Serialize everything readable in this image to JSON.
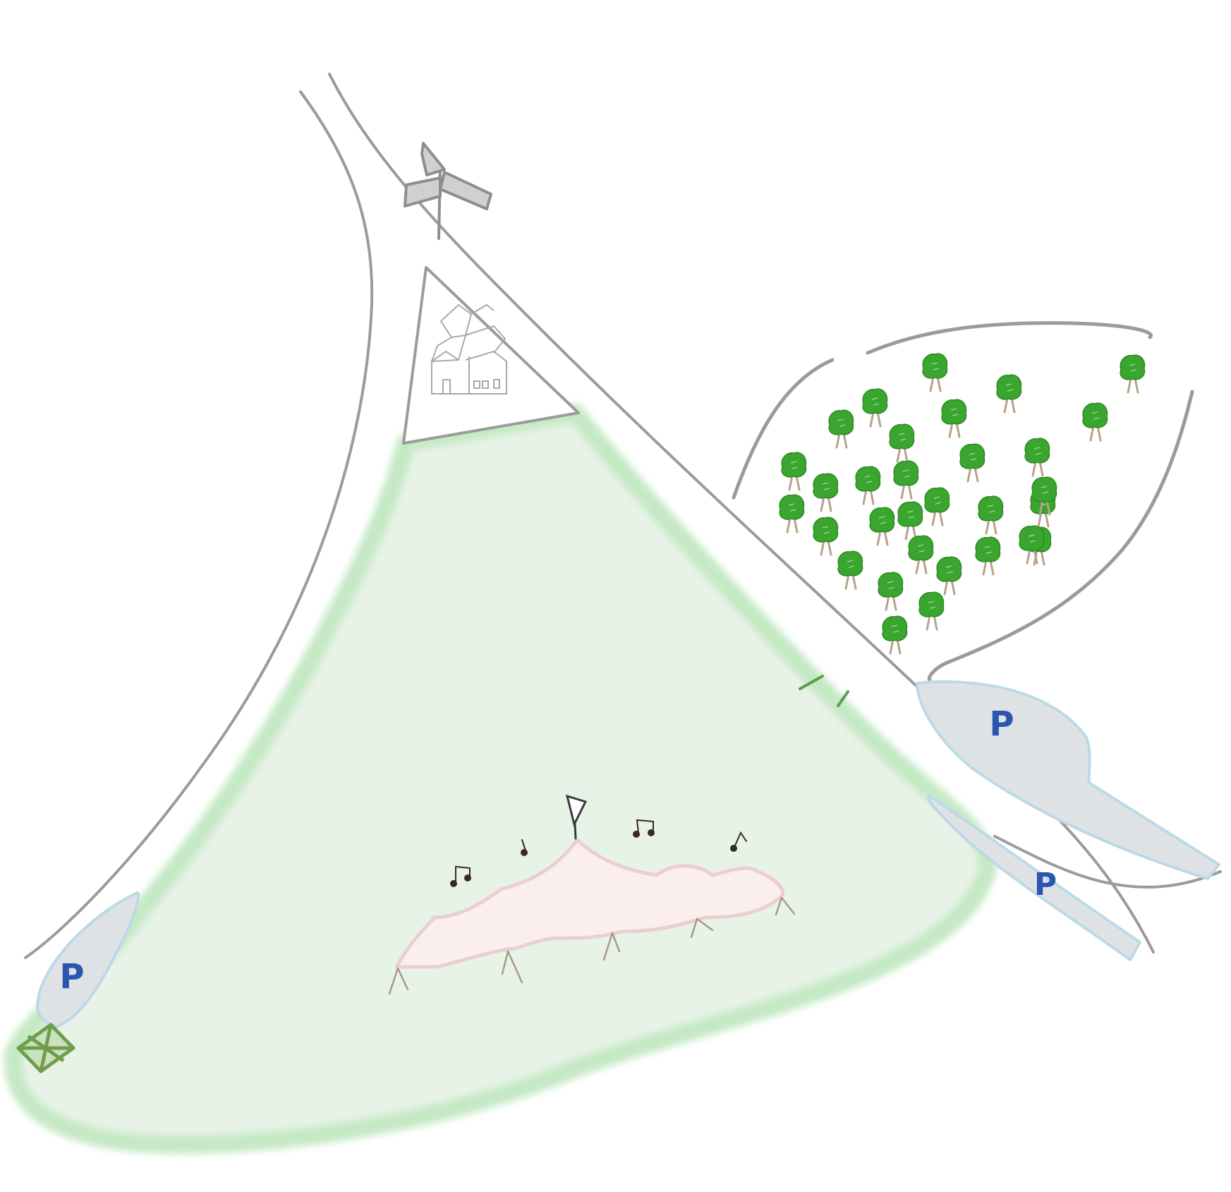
{
  "colors": {
    "road": "#9b9b9b",
    "field_fill": "#e8f3e8",
    "field_border": "#c4e9c4",
    "parking_fill": "#dfe2e4",
    "parking_border": "#bcd9e8",
    "parking_letter": "#2a55b0",
    "tree_canopy": "#3aa52f",
    "tree_trunk": "#b8a28a",
    "tent_fill": "#fbeeee",
    "tent_border": "#ebcfd0",
    "signpost": "#b0b0b0",
    "building": "#a9a9a9",
    "gate": "#6f9e4a",
    "music_note": "#3a2a1a"
  },
  "icons": {
    "signpost": "signpost-icon",
    "buildings": "buildings-icon",
    "tent": "marquee-tent-icon",
    "flag": "flag-icon",
    "music": "music-note-icon",
    "tree": "tree-icon",
    "gate": "gate-icon"
  },
  "parking": [
    {
      "id": "parking-east",
      "label": "P"
    },
    {
      "id": "parking-lane",
      "label": "P"
    },
    {
      "id": "parking-southwest",
      "label": "P"
    }
  ]
}
